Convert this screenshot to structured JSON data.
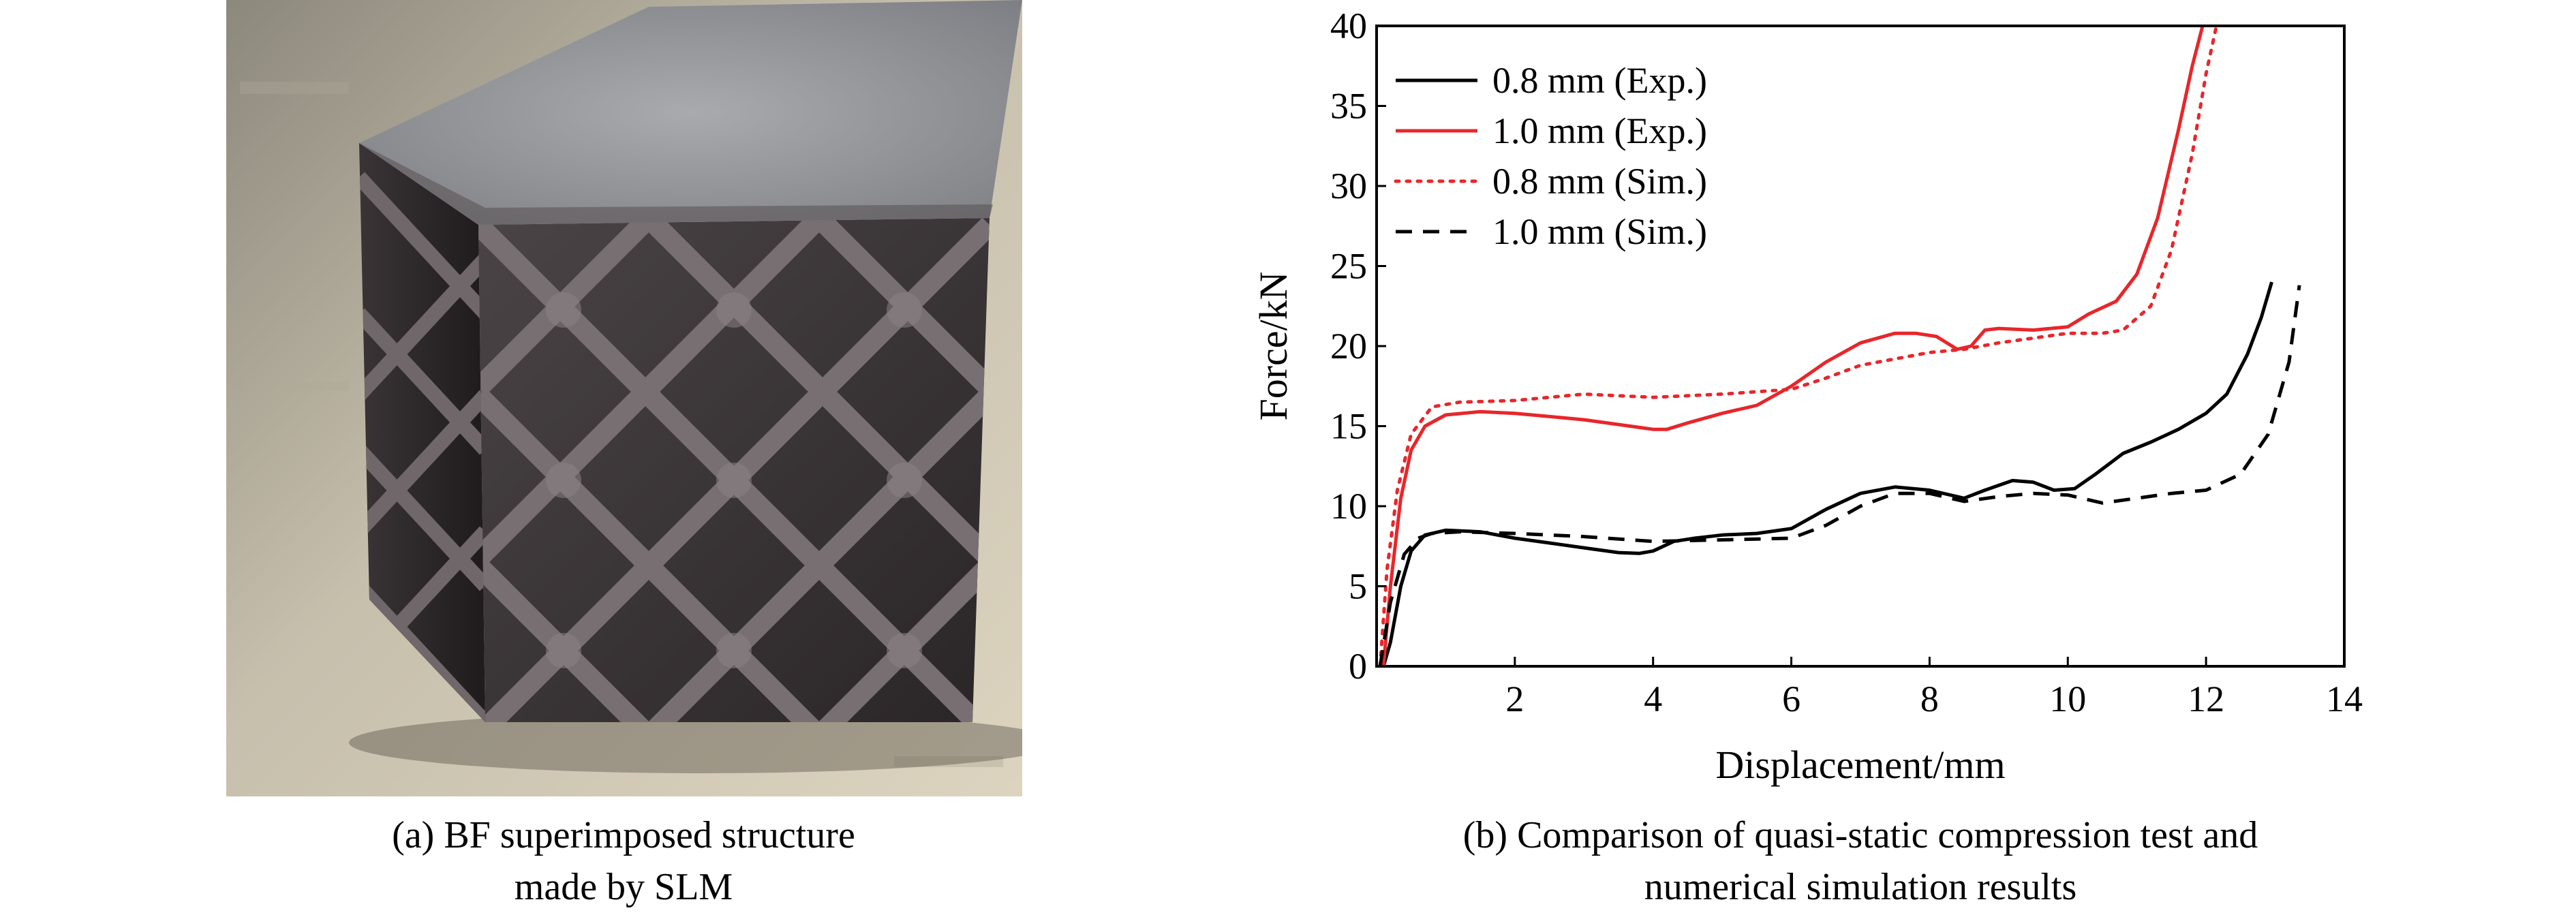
{
  "panel_a": {
    "caption_line1": "(a) BF superimposed structure",
    "caption_line2": "made by SLM"
  },
  "panel_b": {
    "caption_line1": "(b) Comparison of quasi-static compression test and",
    "caption_line2": "numerical simulation results"
  },
  "colors": {
    "black": "#000000",
    "red": "#e8262a"
  },
  "chart_data": {
    "type": "line",
    "title": "",
    "xlabel": "Displacement/mm",
    "ylabel": "Force/kN",
    "xlim": [
      0,
      14
    ],
    "ylim": [
      0,
      40
    ],
    "xticks": [
      2,
      4,
      6,
      8,
      10,
      12,
      14
    ],
    "yticks": [
      0,
      5,
      10,
      15,
      20,
      25,
      30,
      35,
      40
    ],
    "legend_position": "top-left",
    "grid": false,
    "series": [
      {
        "name": "0.8 mm (Exp.)",
        "color": "#000000",
        "dash": "solid",
        "x": [
          0.1,
          0.2,
          0.35,
          0.5,
          0.7,
          1.0,
          1.5,
          2.0,
          2.5,
          3.0,
          3.5,
          3.8,
          4.0,
          4.3,
          4.6,
          5.0,
          5.5,
          6.0,
          6.5,
          7.0,
          7.5,
          8.0,
          8.5,
          8.8,
          9.2,
          9.5,
          9.8,
          10.1,
          10.4,
          10.8,
          11.2,
          11.6,
          12.0,
          12.3,
          12.6,
          12.8,
          12.95
        ],
        "y": [
          0,
          1.5,
          5.0,
          7.2,
          8.2,
          8.5,
          8.4,
          8.0,
          7.7,
          7.4,
          7.1,
          7.05,
          7.2,
          7.8,
          8.0,
          8.2,
          8.3,
          8.6,
          9.8,
          10.8,
          11.2,
          11.0,
          10.5,
          11.0,
          11.6,
          11.5,
          11.0,
          11.1,
          12.0,
          13.3,
          14.0,
          14.8,
          15.8,
          17.0,
          19.5,
          21.8,
          24.0
        ]
      },
      {
        "name": "1.0 mm (Exp.)",
        "color": "#e8262a",
        "dash": "solid",
        "x": [
          0.1,
          0.2,
          0.35,
          0.5,
          0.7,
          1.0,
          1.5,
          2.0,
          2.5,
          3.0,
          3.5,
          4.0,
          4.2,
          4.5,
          5.0,
          5.5,
          6.0,
          6.5,
          7.0,
          7.5,
          7.8,
          8.1,
          8.4,
          8.6,
          8.8,
          9.0,
          9.5,
          10.0,
          10.3,
          10.7,
          11.0,
          11.3,
          11.6,
          11.8,
          11.95
        ],
        "y": [
          0,
          5.0,
          10.5,
          13.5,
          15.0,
          15.7,
          15.9,
          15.8,
          15.6,
          15.4,
          15.1,
          14.8,
          14.8,
          15.2,
          15.8,
          16.3,
          17.5,
          19.0,
          20.2,
          20.8,
          20.8,
          20.6,
          19.8,
          20.0,
          21.0,
          21.1,
          21.0,
          21.2,
          22.0,
          22.8,
          24.5,
          28.0,
          33.5,
          37.5,
          40.0
        ]
      },
      {
        "name": "0.8 mm (Sim.)",
        "color": "#e8262a",
        "dash": "dotted",
        "x": [
          0.05,
          0.15,
          0.3,
          0.5,
          0.8,
          1.2,
          2.0,
          3.0,
          4.0,
          5.0,
          6.0,
          6.5,
          7.0,
          7.5,
          8.0,
          8.5,
          9.0,
          9.5,
          10.0,
          10.5,
          10.8,
          11.2,
          11.5,
          11.8,
          12.0,
          12.15
        ],
        "y": [
          0,
          6.0,
          11.0,
          14.5,
          16.2,
          16.5,
          16.6,
          17.0,
          16.8,
          17.0,
          17.3,
          18.0,
          18.8,
          19.2,
          19.6,
          19.8,
          20.2,
          20.5,
          20.8,
          20.8,
          21.0,
          22.5,
          26.0,
          32.0,
          37.0,
          40.0
        ]
      },
      {
        "name": "1.0 mm (Sim.)",
        "color": "#000000",
        "dash": "dashed",
        "x": [
          0.05,
          0.2,
          0.4,
          0.6,
          0.8,
          1.2,
          2.0,
          3.0,
          4.0,
          5.0,
          6.0,
          6.5,
          7.0,
          7.5,
          8.0,
          8.5,
          9.0,
          9.5,
          10.0,
          10.5,
          11.0,
          11.5,
          12.0,
          12.5,
          12.9,
          13.2,
          13.35
        ],
        "y": [
          0,
          4.0,
          7.0,
          8.0,
          8.3,
          8.4,
          8.3,
          8.1,
          7.8,
          7.9,
          8.0,
          8.8,
          10.0,
          10.8,
          10.8,
          10.3,
          10.6,
          10.8,
          10.7,
          10.2,
          10.5,
          10.8,
          11.0,
          12.0,
          14.5,
          19.0,
          23.8
        ]
      }
    ]
  }
}
